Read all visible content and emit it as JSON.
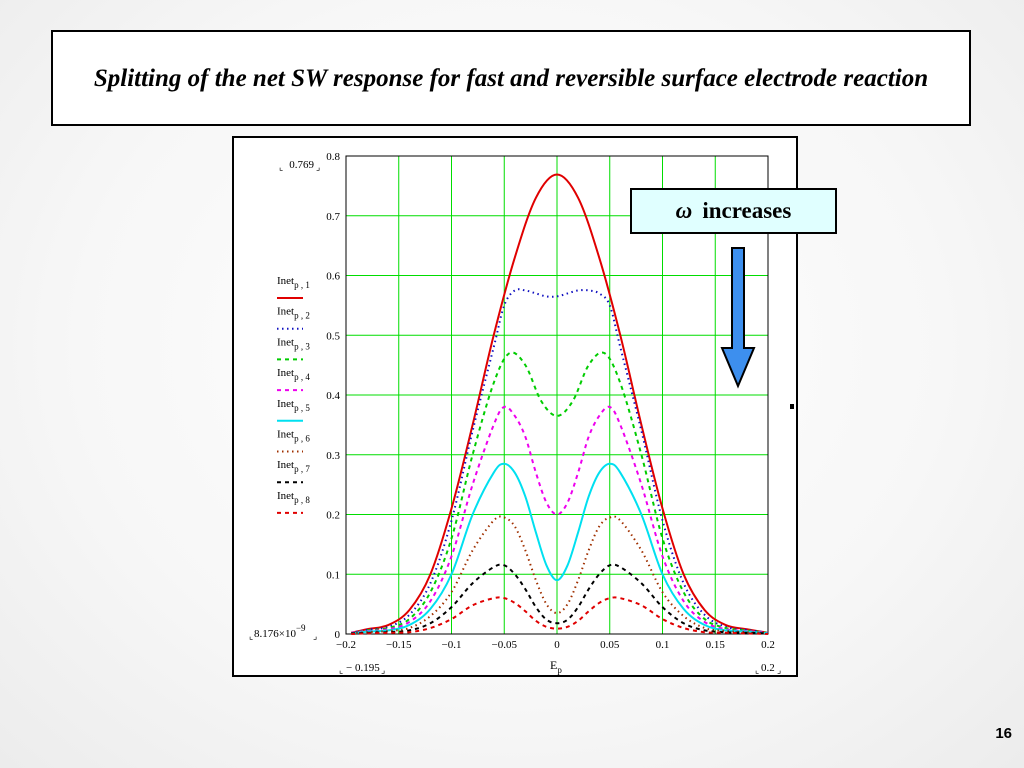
{
  "slide": {
    "title": "Splitting of the net SW response for fast and reversible surface electrode reaction",
    "page_number": "16",
    "callout": {
      "symbol": "ω",
      "text": "increases"
    },
    "colors": {
      "arrow_fill": "#3d8fee",
      "callout_bg": "#e0ffff",
      "grid": "#00dd00"
    }
  },
  "chart_data": {
    "type": "line",
    "xlim": [
      -0.2,
      0.2
    ],
    "ylim": [
      0,
      0.8
    ],
    "x_ticks": [
      -0.2,
      -0.15,
      -0.1,
      -0.05,
      0,
      0.05,
      0.1,
      0.15,
      0.2
    ],
    "x_tick_labels": [
      "−0.2",
      "−0.15",
      "−0.1",
      "−0.05",
      "0",
      "0.05",
      "0.1",
      "0.15",
      "0.2"
    ],
    "y_ticks": [
      0,
      0.1,
      0.2,
      0.3,
      0.4,
      0.5,
      0.6,
      0.7,
      0.8
    ],
    "y_tick_labels": [
      "0",
      "0.1",
      "0.2",
      "0.3",
      "0.4",
      "0.5",
      "0.6",
      "0.7",
      "0.8"
    ],
    "xlabel": {
      "main": "E",
      "sub": "p"
    },
    "y_max_readout": "0.769",
    "y_min_readout": {
      "mantissa": "8.176×10",
      "exponent": "−9"
    },
    "x_min_readout": "− 0.195",
    "x_max_readout": "0.2",
    "grid": true,
    "legend_position": "left",
    "series": [
      {
        "name": "Inet",
        "sub": "p , 1",
        "color": "#e00000",
        "dash": "solid",
        "x": [
          -0.195,
          -0.18,
          -0.16,
          -0.14,
          -0.12,
          -0.1,
          -0.08,
          -0.06,
          -0.04,
          -0.02,
          0,
          0.02,
          0.04,
          0.06,
          0.08,
          0.1,
          0.12,
          0.14,
          0.16,
          0.18,
          0.2
        ],
        "values": [
          0.002,
          0.008,
          0.015,
          0.04,
          0.1,
          0.21,
          0.35,
          0.5,
          0.63,
          0.73,
          0.769,
          0.73,
          0.63,
          0.5,
          0.35,
          0.21,
          0.1,
          0.04,
          0.015,
          0.008,
          0.002
        ]
      },
      {
        "name": "Inet",
        "sub": "p , 2",
        "color": "#1010c0",
        "dash": "dot",
        "x": [
          -0.195,
          -0.18,
          -0.16,
          -0.14,
          -0.12,
          -0.1,
          -0.08,
          -0.06,
          -0.05,
          -0.04,
          -0.03,
          -0.02,
          -0.01,
          0,
          0.01,
          0.02,
          0.03,
          0.04,
          0.05,
          0.06,
          0.08,
          0.1,
          0.12,
          0.14,
          0.16,
          0.18,
          0.2
        ],
        "values": [
          0.002,
          0.007,
          0.012,
          0.032,
          0.085,
          0.19,
          0.34,
          0.48,
          0.55,
          0.575,
          0.575,
          0.57,
          0.565,
          0.565,
          0.57,
          0.575,
          0.575,
          0.57,
          0.55,
          0.48,
          0.34,
          0.19,
          0.085,
          0.032,
          0.012,
          0.007,
          0.002
        ]
      },
      {
        "name": "Inet",
        "sub": "p , 3",
        "color": "#00cc00",
        "dash": "dash",
        "x": [
          -0.195,
          -0.18,
          -0.16,
          -0.14,
          -0.12,
          -0.1,
          -0.08,
          -0.06,
          -0.045,
          -0.03,
          -0.015,
          0,
          0.015,
          0.03,
          0.045,
          0.06,
          0.08,
          0.1,
          0.12,
          0.14,
          0.16,
          0.18,
          0.2
        ],
        "values": [
          0.002,
          0.006,
          0.01,
          0.025,
          0.07,
          0.16,
          0.3,
          0.42,
          0.47,
          0.45,
          0.39,
          0.365,
          0.39,
          0.45,
          0.47,
          0.42,
          0.3,
          0.16,
          0.07,
          0.025,
          0.01,
          0.006,
          0.002
        ]
      },
      {
        "name": "Inet",
        "sub": "p , 4",
        "color": "#ee00ee",
        "dash": "dash",
        "x": [
          -0.195,
          -0.18,
          -0.16,
          -0.14,
          -0.12,
          -0.1,
          -0.08,
          -0.06,
          -0.05,
          -0.04,
          -0.03,
          -0.02,
          -0.01,
          0,
          0.01,
          0.02,
          0.03,
          0.04,
          0.05,
          0.06,
          0.08,
          0.1,
          0.12,
          0.14,
          0.16,
          0.18,
          0.2
        ],
        "values": [
          0.002,
          0.005,
          0.008,
          0.02,
          0.055,
          0.13,
          0.25,
          0.35,
          0.38,
          0.365,
          0.33,
          0.27,
          0.22,
          0.2,
          0.22,
          0.27,
          0.33,
          0.365,
          0.38,
          0.35,
          0.25,
          0.13,
          0.055,
          0.02,
          0.008,
          0.005,
          0.002
        ]
      },
      {
        "name": "Inet",
        "sub": "p , 5",
        "color": "#00e0f0",
        "dash": "solid",
        "x": [
          -0.195,
          -0.18,
          -0.16,
          -0.14,
          -0.12,
          -0.1,
          -0.08,
          -0.06,
          -0.05,
          -0.04,
          -0.03,
          -0.02,
          -0.01,
          0,
          0.01,
          0.02,
          0.03,
          0.04,
          0.05,
          0.06,
          0.08,
          0.1,
          0.12,
          0.14,
          0.16,
          0.18,
          0.2
        ],
        "values": [
          0.001,
          0.004,
          0.006,
          0.015,
          0.042,
          0.1,
          0.2,
          0.27,
          0.285,
          0.27,
          0.23,
          0.17,
          0.115,
          0.09,
          0.115,
          0.17,
          0.23,
          0.27,
          0.285,
          0.27,
          0.2,
          0.1,
          0.042,
          0.015,
          0.006,
          0.004,
          0.001
        ]
      },
      {
        "name": "Inet",
        "sub": "p , 6",
        "color": "#a03000",
        "dash": "dot",
        "x": [
          -0.195,
          -0.18,
          -0.16,
          -0.14,
          -0.12,
          -0.1,
          -0.08,
          -0.06,
          -0.05,
          -0.04,
          -0.03,
          -0.02,
          -0.01,
          0,
          0.01,
          0.02,
          0.03,
          0.04,
          0.05,
          0.06,
          0.08,
          0.1,
          0.12,
          0.14,
          0.16,
          0.18,
          0.2
        ],
        "values": [
          0.001,
          0.003,
          0.005,
          0.01,
          0.03,
          0.07,
          0.14,
          0.19,
          0.195,
          0.18,
          0.14,
          0.09,
          0.05,
          0.035,
          0.05,
          0.09,
          0.14,
          0.18,
          0.195,
          0.19,
          0.14,
          0.07,
          0.03,
          0.01,
          0.005,
          0.003,
          0.001
        ]
      },
      {
        "name": "Inet",
        "sub": "p , 7",
        "color": "#000000",
        "dash": "dash",
        "x": [
          -0.195,
          -0.18,
          -0.16,
          -0.14,
          -0.12,
          -0.1,
          -0.08,
          -0.06,
          -0.05,
          -0.04,
          -0.03,
          -0.02,
          -0.01,
          0,
          0.01,
          0.02,
          0.03,
          0.04,
          0.05,
          0.06,
          0.08,
          0.1,
          0.12,
          0.14,
          0.16,
          0.18,
          0.2
        ],
        "values": [
          0.001,
          0.002,
          0.003,
          0.006,
          0.018,
          0.045,
          0.085,
          0.112,
          0.115,
          0.1,
          0.075,
          0.045,
          0.024,
          0.018,
          0.024,
          0.045,
          0.075,
          0.1,
          0.115,
          0.112,
          0.085,
          0.045,
          0.018,
          0.006,
          0.003,
          0.002,
          0.001
        ]
      },
      {
        "name": "Inet",
        "sub": "p , 8",
        "color": "#e00000",
        "dash": "dash",
        "x": [
          -0.195,
          -0.18,
          -0.16,
          -0.14,
          -0.12,
          -0.1,
          -0.08,
          -0.06,
          -0.05,
          -0.04,
          -0.03,
          -0.02,
          -0.01,
          0,
          0.01,
          0.02,
          0.03,
          0.04,
          0.05,
          0.06,
          0.08,
          0.1,
          0.12,
          0.14,
          0.16,
          0.18,
          0.2
        ],
        "values": [
          0.0,
          0.001,
          0.002,
          0.003,
          0.01,
          0.025,
          0.048,
          0.06,
          0.06,
          0.052,
          0.038,
          0.022,
          0.012,
          0.009,
          0.012,
          0.022,
          0.038,
          0.052,
          0.06,
          0.06,
          0.048,
          0.025,
          0.01,
          0.003,
          0.002,
          0.001,
          0.0
        ]
      }
    ]
  }
}
